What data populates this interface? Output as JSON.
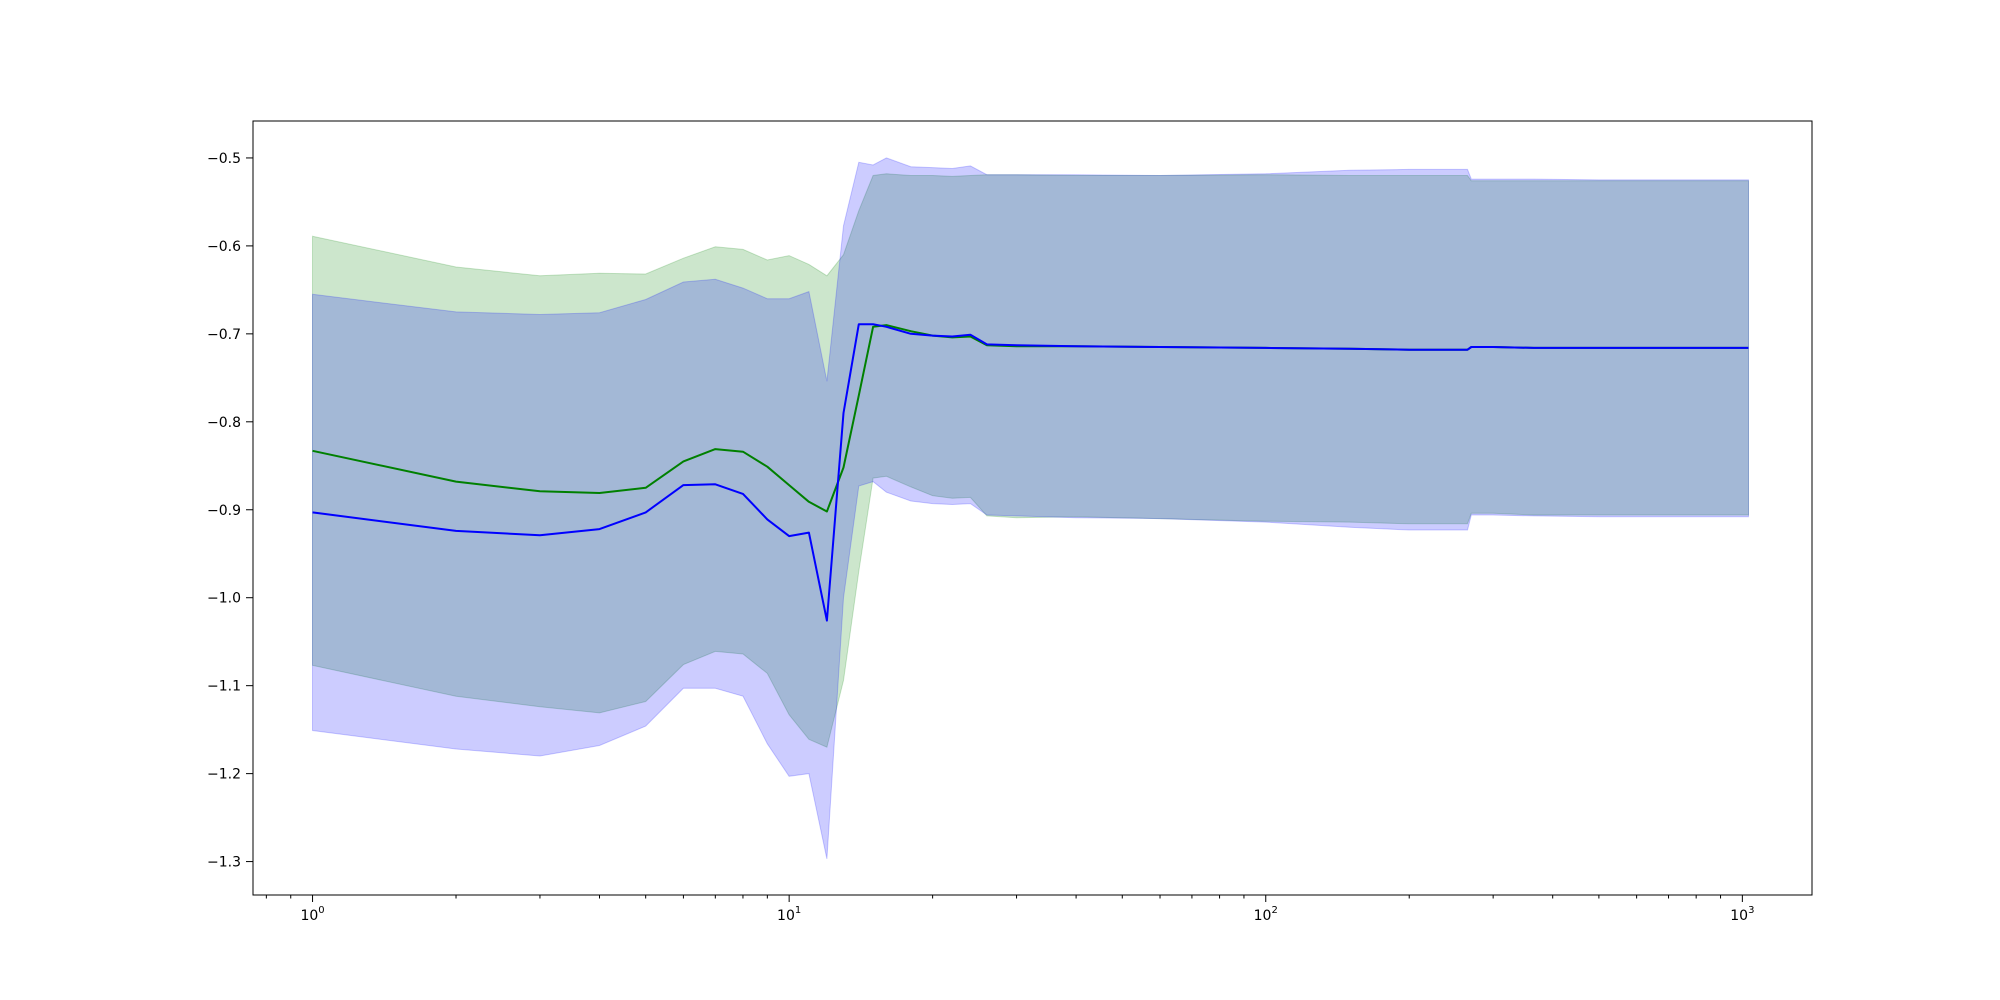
{
  "chart_data": {
    "type": "line",
    "title": "",
    "xlabel": "",
    "ylabel": "",
    "x_scale": "log",
    "xlim": [
      0.75,
      1400
    ],
    "ylim": [
      -1.338,
      -0.458
    ],
    "grid": false,
    "legend": "none",
    "x_ticks": [
      {
        "value": 1,
        "base": "10",
        "exp": "0"
      },
      {
        "value": 10,
        "base": "10",
        "exp": "1"
      },
      {
        "value": 100,
        "base": "10",
        "exp": "2"
      },
      {
        "value": 1000,
        "base": "10",
        "exp": "3"
      }
    ],
    "y_ticks": [
      {
        "value": -0.5,
        "label": "−0.5"
      },
      {
        "value": -0.6,
        "label": "−0.6"
      },
      {
        "value": -0.7,
        "label": "−0.7"
      },
      {
        "value": -0.8,
        "label": "−0.8"
      },
      {
        "value": -0.9,
        "label": "−0.9"
      },
      {
        "value": -1.0,
        "label": "−1.0"
      },
      {
        "value": -1.1,
        "label": "−1.1"
      },
      {
        "value": -1.2,
        "label": "−1.2"
      },
      {
        "value": -1.3,
        "label": "−1.3"
      }
    ],
    "series": [
      {
        "color": "#008000",
        "band_color": "#008000",
        "band_opacity": 0.2,
        "x": [
          1,
          2,
          3,
          4,
          5,
          6,
          7,
          8,
          9,
          10,
          11,
          12,
          13,
          14,
          15,
          16,
          18,
          20,
          22,
          24,
          26,
          30,
          40,
          60,
          100,
          150,
          200,
          265,
          270,
          300,
          365,
          500,
          700,
          1030
        ],
        "y": [
          -0.833,
          -0.868,
          -0.879,
          -0.881,
          -0.875,
          -0.845,
          -0.831,
          -0.834,
          -0.851,
          -0.872,
          -0.891,
          -0.902,
          -0.852,
          -0.77,
          -0.692,
          -0.69,
          -0.697,
          -0.702,
          -0.704,
          -0.703,
          -0.713,
          -0.714,
          -0.714,
          -0.715,
          -0.716,
          -0.717,
          -0.718,
          -0.718,
          -0.715,
          -0.715,
          -0.716,
          -0.716,
          -0.716,
          -0.716
        ],
        "upper": [
          -0.589,
          -0.624,
          -0.634,
          -0.631,
          -0.632,
          -0.614,
          -0.601,
          -0.604,
          -0.616,
          -0.611,
          -0.621,
          -0.634,
          -0.61,
          -0.56,
          -0.52,
          -0.518,
          -0.52,
          -0.52,
          -0.521,
          -0.52,
          -0.519,
          -0.519,
          -0.52,
          -0.52,
          -0.519,
          -0.52,
          -0.52,
          -0.52,
          -0.526,
          -0.526,
          -0.526,
          -0.526,
          -0.526,
          -0.526
        ],
        "lower": [
          -1.077,
          -1.112,
          -1.124,
          -1.131,
          -1.118,
          -1.076,
          -1.061,
          -1.064,
          -1.086,
          -1.133,
          -1.161,
          -1.17,
          -1.094,
          -0.97,
          -0.864,
          -0.862,
          -0.874,
          -0.884,
          -0.887,
          -0.886,
          -0.907,
          -0.909,
          -0.908,
          -0.91,
          -0.913,
          -0.914,
          -0.916,
          -0.916,
          -0.904,
          -0.904,
          -0.906,
          -0.906,
          -0.906,
          -0.906
        ]
      },
      {
        "color": "#0000ff",
        "band_color": "#0000ff",
        "band_opacity": 0.2,
        "x": [
          1,
          2,
          3,
          4,
          5,
          6,
          7,
          8,
          9,
          10,
          11,
          12,
          13,
          14,
          15,
          16,
          18,
          20,
          22,
          24,
          26,
          30,
          40,
          60,
          100,
          150,
          200,
          265,
          270,
          300,
          365,
          500,
          700,
          1030
        ],
        "y": [
          -0.903,
          -0.924,
          -0.929,
          -0.922,
          -0.903,
          -0.872,
          -0.871,
          -0.882,
          -0.911,
          -0.93,
          -0.926,
          -1.026,
          -0.79,
          -0.689,
          -0.689,
          -0.692,
          -0.7,
          -0.702,
          -0.703,
          -0.701,
          -0.712,
          -0.713,
          -0.714,
          -0.715,
          -0.716,
          -0.717,
          -0.718,
          -0.718,
          -0.715,
          -0.715,
          -0.716,
          -0.716,
          -0.716,
          -0.716
        ],
        "upper": [
          -0.655,
          -0.675,
          -0.678,
          -0.676,
          -0.661,
          -0.641,
          -0.638,
          -0.648,
          -0.66,
          -0.66,
          -0.652,
          -0.754,
          -0.577,
          -0.505,
          -0.508,
          -0.5,
          -0.51,
          -0.511,
          -0.512,
          -0.509,
          -0.519,
          -0.519,
          -0.519,
          -0.52,
          -0.518,
          -0.514,
          -0.513,
          -0.513,
          -0.524,
          -0.524,
          -0.524,
          -0.525,
          -0.525,
          -0.525
        ],
        "lower": [
          -1.151,
          -1.172,
          -1.18,
          -1.168,
          -1.146,
          -1.103,
          -1.103,
          -1.112,
          -1.166,
          -1.203,
          -1.2,
          -1.297,
          -1.0,
          -0.873,
          -0.868,
          -0.88,
          -0.89,
          -0.893,
          -0.894,
          -0.893,
          -0.906,
          -0.907,
          -0.909,
          -0.91,
          -0.914,
          -0.92,
          -0.923,
          -0.923,
          -0.906,
          -0.906,
          -0.907,
          -0.908,
          -0.908,
          -0.908
        ]
      }
    ]
  }
}
